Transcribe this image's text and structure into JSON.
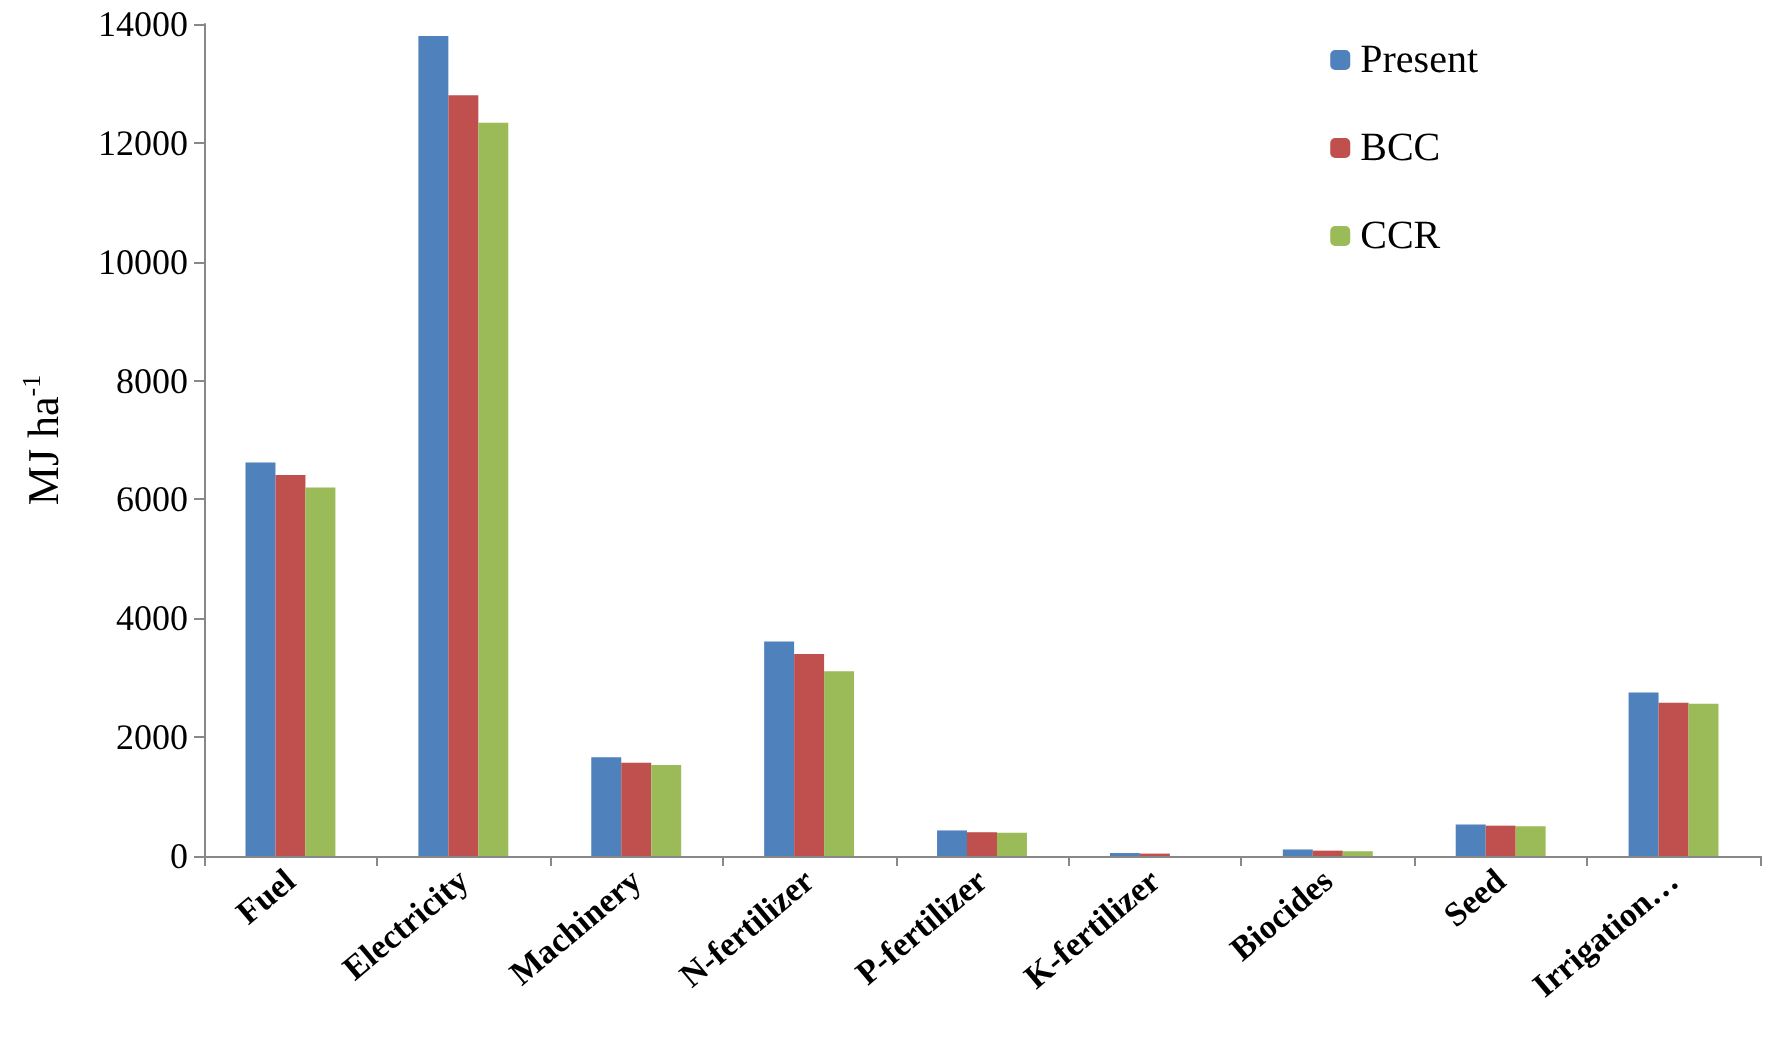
{
  "chart_data": {
    "type": "bar",
    "ylabel": "MJ ha$^{-1}$",
    "categories": [
      "Fuel",
      "Electricity",
      "Machinery",
      "N-fertilizer",
      "P-fertilizer",
      "K-fertilizer",
      "Biocides",
      "Seed",
      "Irrigation…"
    ],
    "series": [
      {
        "name": "Present",
        "color": "#4f81bd",
        "values": [
          6620,
          13800,
          1660,
          3610,
          430,
          50,
          110,
          530,
          2750
        ]
      },
      {
        "name": "BCC",
        "color": "#c0504d",
        "values": [
          6410,
          12800,
          1570,
          3400,
          400,
          40,
          90,
          510,
          2580
        ]
      },
      {
        "name": "CCR",
        "color": "#9bbb59",
        "values": [
          6200,
          12340,
          1530,
          3110,
          390,
          null,
          80,
          500,
          2560
        ]
      }
    ],
    "ylim": [
      0,
      14000
    ],
    "yticks": [
      0,
      2000,
      4000,
      6000,
      8000,
      10000,
      12000,
      14000
    ],
    "grid": false,
    "legend": "top right"
  }
}
